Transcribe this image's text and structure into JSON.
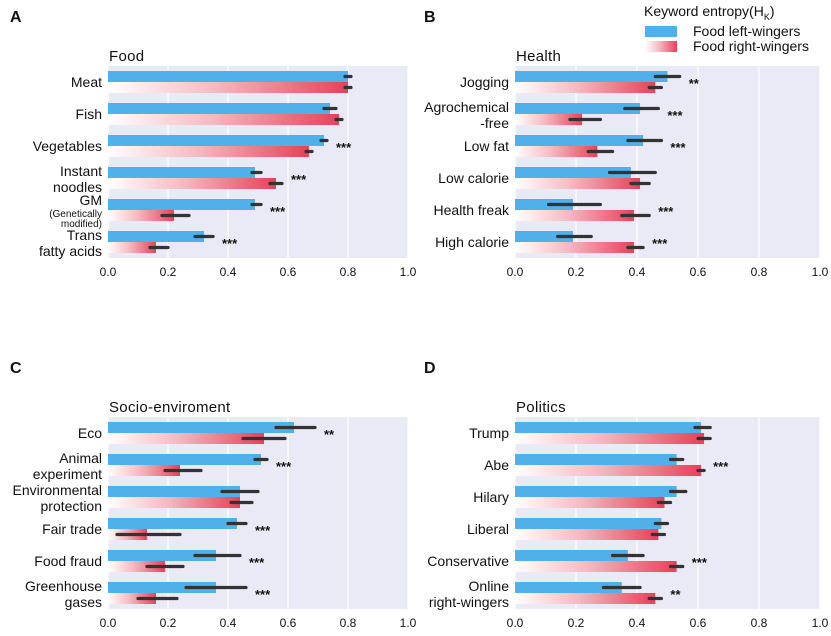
{
  "legend": {
    "title_main": "Keyword entropy(H",
    "title_sub": "K",
    "title_end": ")",
    "left_label": "Food left-wingers",
    "right_label": "Food right-wingers"
  },
  "colors": {
    "left": "#4fb0ea",
    "right": "#e8405a",
    "plot_bg": "#eaeaf6",
    "grid": "#ffffff",
    "error": "#333333"
  },
  "chart_data": [
    {
      "type": "bar",
      "panel": "A",
      "title": "Food",
      "xlim": [
        0,
        1.0
      ],
      "xticks": [
        "0.0",
        "0.2",
        "0.4",
        "0.6",
        "0.8",
        "1.0"
      ],
      "categories": [
        {
          "lines": [
            "Meat"
          ],
          "left": 0.8,
          "left_err": [
            0.79,
            0.81
          ],
          "right": 0.8,
          "right_err": [
            0.79,
            0.81
          ],
          "sig": ""
        },
        {
          "lines": [
            "Fish"
          ],
          "left": 0.74,
          "left_err": [
            0.72,
            0.76
          ],
          "right": 0.77,
          "right_err": [
            0.76,
            0.78
          ],
          "sig": ""
        },
        {
          "lines": [
            "Vegetables"
          ],
          "left": 0.72,
          "left_err": [
            0.71,
            0.73
          ],
          "right": 0.67,
          "right_err": [
            0.66,
            0.68
          ],
          "sig": "***"
        },
        {
          "lines": [
            "Instant",
            "noodles"
          ],
          "left": 0.49,
          "left_err": [
            0.48,
            0.51
          ],
          "right": 0.56,
          "right_err": [
            0.54,
            0.58
          ],
          "sig": "***"
        },
        {
          "lines": [
            "GM",
            "(Genetically",
            "modified)"
          ],
          "left": 0.49,
          "left_err": [
            0.48,
            0.51
          ],
          "right": 0.22,
          "right_err": [
            0.18,
            0.27
          ],
          "sig": "***"
        },
        {
          "lines": [
            "Trans",
            "fatty acids"
          ],
          "left": 0.32,
          "left_err": [
            0.29,
            0.35
          ],
          "right": 0.16,
          "right_err": [
            0.14,
            0.2
          ],
          "sig": "***"
        }
      ]
    },
    {
      "type": "bar",
      "panel": "B",
      "title": "Health",
      "xlim": [
        0,
        1.0
      ],
      "xticks": [
        "0.0",
        "0.2",
        "0.4",
        "0.6",
        "0.8",
        "1.0"
      ],
      "categories": [
        {
          "lines": [
            "Jogging"
          ],
          "left": 0.5,
          "left_err": [
            0.46,
            0.54
          ],
          "right": 0.46,
          "right_err": [
            0.44,
            0.48
          ],
          "sig": "**"
        },
        {
          "lines": [
            "Agrochemical",
            "-free"
          ],
          "left": 0.41,
          "left_err": [
            0.36,
            0.47
          ],
          "right": 0.22,
          "right_err": [
            0.18,
            0.28
          ],
          "sig": "***"
        },
        {
          "lines": [
            "Low fat"
          ],
          "left": 0.42,
          "left_err": [
            0.37,
            0.48
          ],
          "right": 0.27,
          "right_err": [
            0.24,
            0.32
          ],
          "sig": "***"
        },
        {
          "lines": [
            "Low calorie"
          ],
          "left": 0.38,
          "left_err": [
            0.31,
            0.46
          ],
          "right": 0.41,
          "right_err": [
            0.38,
            0.44
          ],
          "sig": ""
        },
        {
          "lines": [
            "Health freak"
          ],
          "left": 0.19,
          "left_err": [
            0.11,
            0.28
          ],
          "right": 0.39,
          "right_err": [
            0.35,
            0.44
          ],
          "sig": "***"
        },
        {
          "lines": [
            "High calorie"
          ],
          "left": 0.19,
          "left_err": [
            0.14,
            0.25
          ],
          "right": 0.39,
          "right_err": [
            0.37,
            0.42
          ],
          "sig": "***"
        }
      ]
    },
    {
      "type": "bar",
      "panel": "C",
      "title": "Socio-enviroment",
      "xlim": [
        0,
        1.0
      ],
      "xticks": [
        "0.0",
        "0.2",
        "0.4",
        "0.6",
        "0.8",
        "1.0"
      ],
      "categories": [
        {
          "lines": [
            "Eco"
          ],
          "left": 0.62,
          "left_err": [
            0.56,
            0.69
          ],
          "right": 0.52,
          "right_err": [
            0.45,
            0.59
          ],
          "sig": "**"
        },
        {
          "lines": [
            "Animal",
            "experiment"
          ],
          "left": 0.51,
          "left_err": [
            0.49,
            0.53
          ],
          "right": 0.24,
          "right_err": [
            0.19,
            0.31
          ],
          "sig": "***"
        },
        {
          "lines": [
            "Environmental",
            "protection"
          ],
          "left": 0.44,
          "left_err": [
            0.38,
            0.5
          ],
          "right": 0.44,
          "right_err": [
            0.41,
            0.48
          ],
          "sig": ""
        },
        {
          "lines": [
            "Fair trade"
          ],
          "left": 0.43,
          "left_err": [
            0.4,
            0.46
          ],
          "right": 0.13,
          "right_err": [
            0.03,
            0.24
          ],
          "sig": "***"
        },
        {
          "lines": [
            "Food fraud"
          ],
          "left": 0.36,
          "left_err": [
            0.29,
            0.44
          ],
          "right": 0.19,
          "right_err": [
            0.13,
            0.25
          ],
          "sig": "***"
        },
        {
          "lines": [
            "Greenhouse",
            "gases"
          ],
          "left": 0.36,
          "left_err": [
            0.26,
            0.46
          ],
          "right": 0.16,
          "right_err": [
            0.1,
            0.23
          ],
          "sig": "***"
        }
      ]
    },
    {
      "type": "bar",
      "panel": "D",
      "title": "Politics",
      "xlim": [
        0,
        1.0
      ],
      "xticks": [
        "0.0",
        "0.2",
        "0.4",
        "0.6",
        "0.8",
        "1.0"
      ],
      "categories": [
        {
          "lines": [
            "Trump"
          ],
          "left": 0.61,
          "left_err": [
            0.59,
            0.64
          ],
          "right": 0.62,
          "right_err": [
            0.6,
            0.64
          ],
          "sig": ""
        },
        {
          "lines": [
            "Abe"
          ],
          "left": 0.53,
          "left_err": [
            0.51,
            0.55
          ],
          "right": 0.61,
          "right_err": [
            0.6,
            0.62
          ],
          "sig": "***"
        },
        {
          "lines": [
            "Hilary"
          ],
          "left": 0.53,
          "left_err": [
            0.51,
            0.56
          ],
          "right": 0.49,
          "right_err": [
            0.47,
            0.51
          ],
          "sig": ""
        },
        {
          "lines": [
            "Liberal"
          ],
          "left": 0.48,
          "left_err": [
            0.46,
            0.5
          ],
          "right": 0.47,
          "right_err": [
            0.45,
            0.49
          ],
          "sig": ""
        },
        {
          "lines": [
            "Conservative"
          ],
          "left": 0.37,
          "left_err": [
            0.32,
            0.42
          ],
          "right": 0.53,
          "right_err": [
            0.51,
            0.55
          ],
          "sig": "***"
        },
        {
          "lines": [
            "Online",
            "right-wingers"
          ],
          "left": 0.35,
          "left_err": [
            0.29,
            0.41
          ],
          "right": 0.46,
          "right_err": [
            0.44,
            0.48
          ],
          "sig": "**"
        }
      ]
    }
  ]
}
